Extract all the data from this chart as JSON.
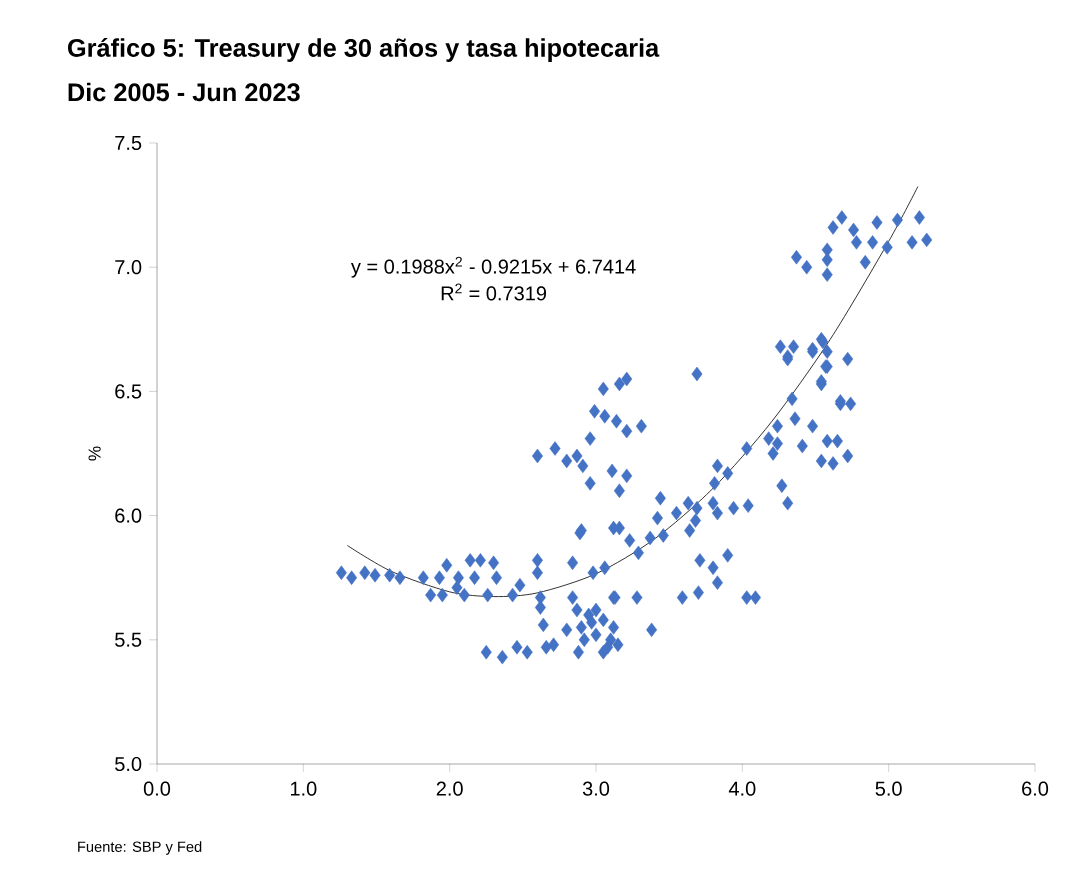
{
  "chart_data": {
    "type": "scatter",
    "title": "Gráfico 5:  Treasury de 30 años y  tasa hipotecaria",
    "subtitle": "Dic 2005  -  Jun 2023",
    "ylabel": "%",
    "annotations": [
      "y = 0.1988x$^{2}$ - 0.9215x + 6.7414",
      "R$^{2}$ = 0.7319",
      "Fuente: SBP y Fed"
    ],
    "xlim": [
      0,
      6
    ],
    "ylim": [
      5,
      7.5
    ],
    "xticks": [
      {
        "value": 0,
        "label": "0.0"
      },
      {
        "value": 1,
        "label": "1.0"
      },
      {
        "value": 2,
        "label": "2.0"
      },
      {
        "value": 3,
        "label": "3.0"
      },
      {
        "value": 4,
        "label": "4.0"
      },
      {
        "value": 5,
        "label": "5.0"
      },
      {
        "value": 6,
        "label": "6.0"
      }
    ],
    "yticks": [
      {
        "value": 5,
        "label": "5.0"
      },
      {
        "value": 5.5,
        "label": "5.5"
      },
      {
        "value": 6,
        "label": "6.0"
      },
      {
        "value": 6.5,
        "label": "6.5"
      },
      {
        "value": 7,
        "label": "7.0"
      },
      {
        "value": 7.5,
        "label": "7.5"
      }
    ],
    "marker": "diamond",
    "series": [
      {
        "color": "#4472c4",
        "x": [
          1.26,
          1.33,
          1.42,
          1.49,
          1.59,
          1.66,
          1.82,
          1.87,
          1.95,
          1.98,
          1.93,
          2.06,
          2.05,
          2.1,
          2.14,
          2.21,
          2.17,
          2.3,
          2.32,
          2.26,
          2.43,
          2.48,
          2.6,
          2.6,
          2.62,
          2.62,
          2.64,
          2.25,
          2.36,
          2.46,
          2.53,
          2.66,
          2.71,
          2.84,
          2.89,
          2.88,
          3.05,
          2.84,
          2.8,
          2.87,
          2.98,
          3.06,
          3.12,
          3.12,
          2.9,
          2.95,
          3.0,
          3.05,
          3.1,
          3.0,
          2.92,
          3.08,
          3.15,
          3.12,
          2.97,
          3.05,
          3.16,
          3.21,
          2.99,
          3.06,
          3.14,
          3.21,
          3.31,
          2.96,
          2.6,
          2.72,
          2.8,
          2.87,
          2.91,
          2.96,
          3.11,
          3.21,
          3.16,
          3.44,
          3.42,
          3.55,
          2.9,
          3.16,
          3.69,
          3.23,
          3.29,
          3.37,
          3.46,
          3.63,
          3.69,
          3.64,
          3.68,
          3.81,
          3.83,
          3.9,
          3.8,
          3.83,
          3.94,
          4.04,
          4.03,
          4.18,
          4.21,
          4.24,
          4.24,
          4.34,
          4.36,
          4.27,
          4.31,
          4.48,
          4.41,
          4.58,
          4.65,
          4.54,
          4.62,
          4.72,
          4.26,
          4.31,
          4.48,
          4.55,
          4.54,
          4.58,
          4.72,
          4.67,
          3.71,
          3.8,
          3.9,
          3.83,
          3.59,
          3.7,
          4.03,
          4.09,
          3.28,
          3.13,
          3.38,
          4.68,
          4.62,
          4.76,
          4.92,
          5.06,
          5.21,
          4.78,
          4.89,
          4.99,
          5.16,
          5.26,
          4.84,
          4.37,
          4.44,
          4.58,
          4.58,
          4.58,
          4.35,
          4.31,
          4.48,
          4.54,
          4.58,
          4.57,
          4.54,
          4.67,
          4.74
        ],
        "values": [
          5.77,
          5.75,
          5.77,
          5.76,
          5.76,
          5.75,
          5.75,
          5.68,
          5.68,
          5.8,
          5.75,
          5.75,
          5.71,
          5.68,
          5.82,
          5.82,
          5.75,
          5.81,
          5.75,
          5.68,
          5.68,
          5.72,
          5.82,
          5.77,
          5.67,
          5.63,
          5.56,
          5.45,
          5.43,
          5.47,
          5.45,
          5.47,
          5.48,
          5.81,
          5.93,
          5.45,
          5.45,
          5.67,
          5.54,
          5.62,
          5.77,
          5.79,
          5.67,
          5.95,
          5.55,
          5.6,
          5.52,
          5.58,
          5.5,
          5.62,
          5.5,
          5.47,
          5.48,
          5.55,
          5.57,
          6.51,
          6.53,
          6.55,
          6.42,
          6.4,
          6.38,
          6.34,
          6.36,
          6.31,
          6.24,
          6.27,
          6.22,
          6.24,
          6.2,
          6.13,
          6.18,
          6.16,
          6.1,
          6.07,
          5.99,
          6.01,
          5.94,
          5.95,
          6.57,
          5.9,
          5.85,
          5.91,
          5.92,
          6.05,
          6.03,
          5.94,
          5.98,
          6.13,
          6.2,
          6.17,
          6.05,
          6.01,
          6.03,
          6.04,
          6.27,
          6.31,
          6.25,
          6.29,
          6.36,
          6.47,
          6.39,
          6.12,
          6.05,
          6.36,
          6.28,
          6.3,
          6.3,
          6.22,
          6.21,
          6.24,
          6.68,
          6.64,
          6.67,
          6.7,
          6.53,
          6.6,
          6.63,
          6.45,
          5.82,
          5.79,
          5.84,
          5.73,
          5.67,
          5.69,
          5.67,
          5.67,
          5.67,
          5.67,
          5.54,
          7.2,
          7.16,
          7.15,
          7.18,
          7.19,
          7.2,
          7.1,
          7.1,
          7.08,
          7.1,
          7.11,
          7.02,
          7.04,
          7.0,
          7.07,
          7.03,
          6.97,
          6.68,
          6.63,
          6.66,
          6.71,
          6.66,
          6.6,
          6.54,
          6.46,
          6.45
        ]
      },
      {
        "type": "line",
        "color": "#000000",
        "marker": "none",
        "x": [
          1.3,
          1.6,
          2.0,
          2.3,
          2.6,
          3.0,
          3.4,
          3.8,
          4.2,
          4.6,
          5.0,
          5.2
        ],
        "values": [
          5.88,
          5.776,
          5.693,
          5.674,
          5.689,
          5.766,
          5.906,
          6.11,
          6.378,
          6.709,
          7.104,
          7.325
        ]
      }
    ]
  }
}
